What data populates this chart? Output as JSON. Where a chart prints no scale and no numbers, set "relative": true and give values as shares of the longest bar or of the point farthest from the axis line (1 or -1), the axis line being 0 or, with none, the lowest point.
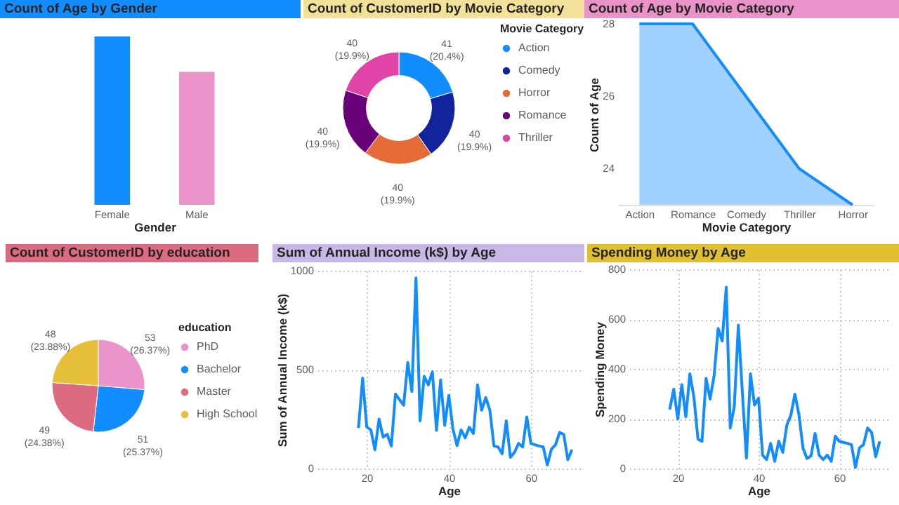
{
  "chart_data": [
    {
      "type": "bar",
      "title": "Count of Age by Gender",
      "xlabel": "Gender",
      "categories": [
        "Female",
        "Male"
      ],
      "values": [
        1,
        0.79
      ],
      "colors": [
        "#118dff",
        "#e993c8"
      ],
      "relative": true
    },
    {
      "type": "donut",
      "title": "Count of CustomerID by Movie Category",
      "legend_title": "Movie Category",
      "legend": "right",
      "categories": [
        "Action",
        "Comedy",
        "Horror",
        "Romance",
        "Thriller"
      ],
      "values": [
        41,
        40,
        40,
        40,
        40
      ],
      "colors": [
        "#118dff",
        "#12239e",
        "#e66c37",
        "#6b007b",
        "#e044a7"
      ],
      "value_labels": [
        "41 (20.4%)",
        "40 (19.9%)",
        "40 (19.9%)",
        "40 (19.9%)",
        "40 (19.9%)"
      ]
    },
    {
      "type": "area",
      "title": "Count of Age by Movie Category",
      "xlabel": "Movie Category",
      "ylabel": "Count of Age",
      "categories": [
        "Action",
        "Romance",
        "Comedy",
        "Thriller",
        "Horror"
      ],
      "values": [
        28,
        28,
        26,
        24,
        23
      ],
      "color": "#118dff",
      "ylim": [
        23,
        28
      ],
      "yticks": [
        24,
        26,
        28
      ]
    },
    {
      "type": "pie",
      "title": "Count of CustomerID by education",
      "legend_title": "education",
      "legend": "right",
      "categories": [
        "PhD",
        "Bachelor",
        "Master",
        "High School"
      ],
      "values": [
        53,
        51,
        49,
        48
      ],
      "colors": [
        "#ea94cb",
        "#118dff",
        "#dd6b7f",
        "#e6c03a"
      ],
      "value_labels": [
        "53 (26.37%)",
        "51 (25.37%)",
        "49 (24.38%)",
        "48 (23.88%)"
      ]
    },
    {
      "type": "line",
      "title": "Sum of Annual Income (k$) by Age",
      "xlabel": "Age",
      "ylabel": "Sum of Annual Income (k$)",
      "color": "#118dff",
      "grid": true,
      "xlim": [
        8,
        72
      ],
      "xticks": [
        20,
        40,
        60
      ],
      "ylim": [
        0,
        1000
      ],
      "yticks": [
        0,
        500,
        {
          "value": 1000,
          "label": "1000"
        }
      ],
      "x": [
        18,
        19,
        20,
        21,
        22,
        23,
        24,
        25,
        26,
        27,
        28,
        29,
        30,
        31,
        32,
        33,
        34,
        35,
        36,
        37,
        38,
        39,
        40,
        41,
        42,
        43,
        44,
        45,
        46,
        47,
        48,
        49,
        50,
        51,
        52,
        53,
        54,
        55,
        56,
        57,
        58,
        59,
        60,
        61,
        62,
        63,
        64,
        65,
        66,
        67,
        68,
        69,
        70
      ],
      "values": [
        205,
        457,
        211,
        195,
        95,
        250,
        159,
        173,
        114,
        377,
        348,
        320,
        536,
        389,
        964,
        241,
        466,
        423,
        489,
        193,
        448,
        218,
        370,
        200,
        116,
        195,
        155,
        209,
        177,
        423,
        295,
        359,
        295,
        114,
        109,
        75,
        241,
        57,
        82,
        127,
        109,
        261,
        127,
        120,
        114,
        109,
        18,
        98,
        120,
        182,
        173,
        45,
        95
      ]
    },
    {
      "type": "line",
      "title": "Spending Money by Age",
      "xlabel": "Age",
      "ylabel": "Spending Money",
      "color": "#118dff",
      "grid": true,
      "xlim": [
        8,
        72
      ],
      "xticks": [
        20,
        40,
        60
      ],
      "ylim": [
        0,
        800
      ],
      "yticks": [
        0,
        200,
        400,
        600,
        800
      ],
      "x": [
        18,
        19,
        20,
        21,
        22,
        23,
        24,
        25,
        26,
        27,
        28,
        29,
        30,
        31,
        32,
        33,
        34,
        35,
        36,
        37,
        38,
        39,
        40,
        41,
        42,
        43,
        44,
        45,
        46,
        47,
        48,
        49,
        50,
        51,
        52,
        53,
        54,
        55,
        56,
        57,
        58,
        59,
        60,
        61,
        62,
        63,
        64,
        65,
        66,
        67,
        68,
        69,
        70
      ],
      "values": [
        237,
        319,
        199,
        337,
        208,
        380,
        286,
        118,
        109,
        362,
        279,
        373,
        563,
        512,
        728,
        163,
        250,
        576,
        304,
        42,
        380,
        255,
        282,
        54,
        36,
        101,
        29,
        110,
        65,
        174,
        214,
        299,
        217,
        83,
        40,
        51,
        141,
        54,
        36,
        54,
        29,
        130,
        109,
        105,
        101,
        96,
        4,
        83,
        96,
        163,
        145,
        47,
        109
      ]
    }
  ]
}
